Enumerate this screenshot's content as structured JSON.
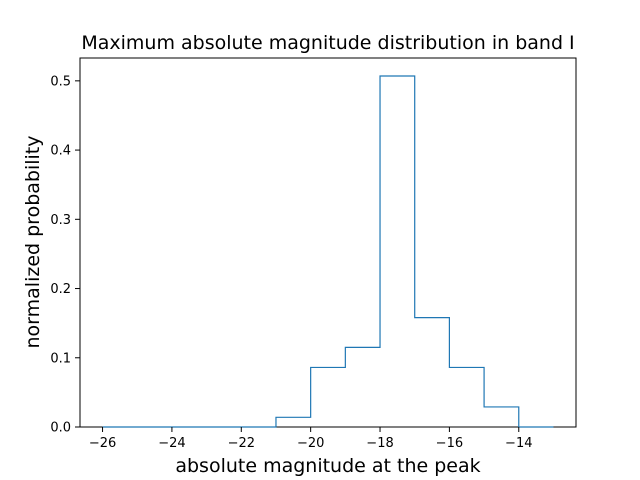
{
  "chart_data": {
    "type": "histogram",
    "title": "Maximum absolute magnitude distribution in band I",
    "xlabel": "absolute magnitude at the peak",
    "ylabel": "normalized probability",
    "xlim": [
      -26.65,
      -12.35
    ],
    "ylim": [
      0,
      0.533
    ],
    "xticks": [
      -26,
      -24,
      -22,
      -20,
      -18,
      -16,
      -14
    ],
    "xtick_labels": [
      "−26",
      "−24",
      "−22",
      "−20",
      "−18",
      "−16",
      "−14"
    ],
    "yticks": [
      0.0,
      0.1,
      0.2,
      0.3,
      0.4,
      0.5
    ],
    "ytick_labels": [
      "0.0",
      "0.1",
      "0.2",
      "0.3",
      "0.4",
      "0.5"
    ],
    "bin_edges": [
      -26,
      -25,
      -24,
      -23,
      -22,
      -21,
      -20,
      -19,
      -18,
      -17,
      -16,
      -15,
      -14,
      -13
    ],
    "values": [
      0,
      0,
      0,
      0,
      0,
      0.014,
      0.086,
      0.115,
      0.507,
      0.158,
      0.086,
      0.029,
      0.0
    ],
    "line_color": "#1f77b4",
    "grid": false
  }
}
